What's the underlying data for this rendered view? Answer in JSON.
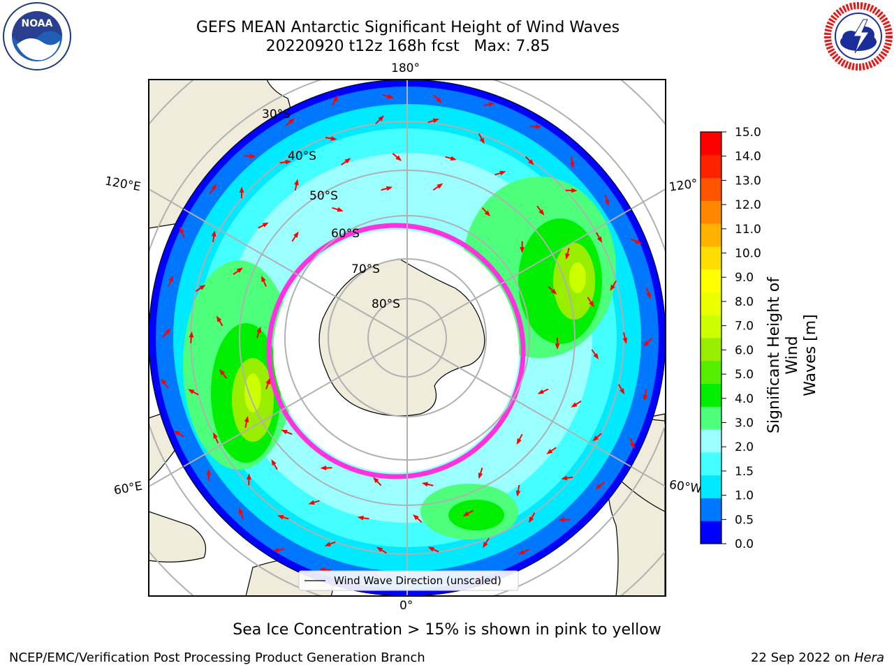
{
  "title": {
    "line1": "GEFS MEAN Antarctic Significant Height of Wind Waves",
    "line2": "20220920 t12z 168h fcst   Max: 7.85"
  },
  "logos": {
    "left": {
      "text": "NOAA",
      "icon": "noaa-logo"
    },
    "right": {
      "icon": "national-weather-service-logo"
    }
  },
  "map": {
    "projection": "south-polar-stereographic",
    "longitude_labels": [
      "180°",
      "120°E",
      "120°",
      "60°E",
      "60°W",
      "0°"
    ],
    "latitude_labels": [
      "30°S",
      "40°S",
      "50°S",
      "60°S",
      "70°S",
      "80°S"
    ],
    "legend": {
      "label": "Wind Wave Direction (unscaled)"
    },
    "vector_color": "#ff0000"
  },
  "colorbar": {
    "label_line1": "Significant Height of Wind",
    "label_line2": "Waves [m]",
    "ticks": [
      "0.0",
      "0.5",
      "1.0",
      "1.5",
      "2.0",
      "3.0",
      "4.0",
      "5.0",
      "6.0",
      "7.0",
      "8.0",
      "9.0",
      "10.0",
      "11.0",
      "12.0",
      "13.0",
      "14.0",
      "15.0"
    ],
    "colors": [
      "#0000ff",
      "#0077ff",
      "#00eaff",
      "#44ffff",
      "#9bffff",
      "#4dff7a",
      "#00ef00",
      "#55ee00",
      "#99ee00",
      "#ccff00",
      "#ebff00",
      "#ffff00",
      "#ffdd00",
      "#ffb300",
      "#ff8800",
      "#ff5500",
      "#ff2200",
      "#ff0000"
    ]
  },
  "chart_data": {
    "type": "heatmap",
    "title": "GEFS MEAN Antarctic Significant Height of Wind Waves",
    "subtitle": "20220920 t12z 168h fcst   Max: 7.85",
    "max_value": 7.85,
    "units": "m",
    "colorbar_range": [
      0.0,
      15.0
    ]
  },
  "footnote": "Sea Ice Concentration > 15% is shown in pink to yellow",
  "credits": {
    "left": "NCEP/EMC/Verification Post Processing Product Generation Branch",
    "right_date": "22 Sep 2022 on",
    "right_host": "Hera"
  }
}
